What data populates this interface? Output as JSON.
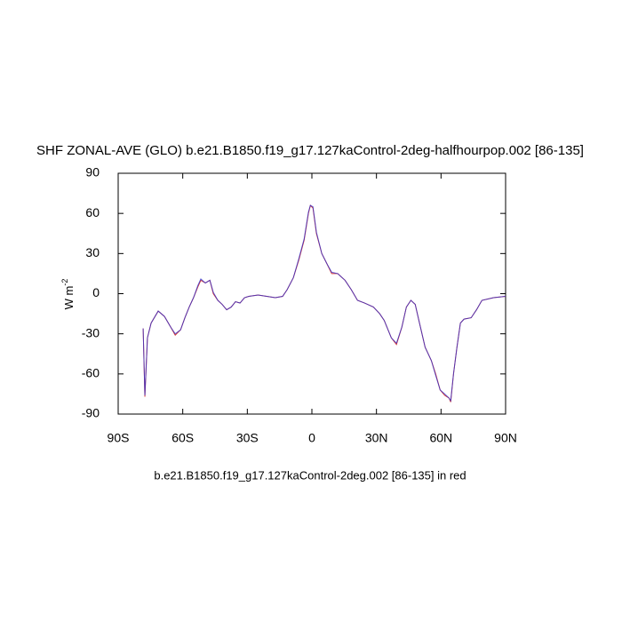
{
  "chart_data": {
    "type": "line",
    "title": "SHF ZONAL-AVE (GLO) b.e21.B1850.f19_g17.127kaControl-2deg-halfhourpop.002 [86-135]",
    "subtitle": "b.e21.B1850.f19_g17.127kaControl-2deg.002 [86-135] in red",
    "ylabel": {
      "text": "W m",
      "sup": "-2"
    },
    "x": [
      -78.4,
      -77.6,
      -76.4,
      -74.7,
      -71.4,
      -68.5,
      -65.6,
      -63.5,
      -61,
      -59,
      -57,
      -55,
      -53,
      -51.6,
      -49.5,
      -47.4,
      -45.8,
      -43.7,
      -41.7,
      -39.6,
      -37.5,
      -35.5,
      -33.4,
      -31.3,
      -29.3,
      -25,
      -21,
      -17,
      -13.6,
      -11.5,
      -8.6,
      -6.1,
      -3.6,
      -1.6,
      -0.7,
      0.5,
      2.1,
      4.6,
      7.1,
      9.2,
      12,
      15.4,
      18.3,
      21.2,
      24.5,
      28.6,
      31.5,
      33.6,
      36.9,
      39.3,
      41.8,
      43.9,
      46,
      48,
      50,
      52.6,
      55.5,
      57.5,
      59.6,
      61.7,
      63.7,
      64.5,
      65.8,
      67.4,
      69,
      70.7,
      74,
      76.5,
      79,
      84.4,
      90
    ],
    "series": [
      {
        "color": "#cc0000",
        "values": [
          -26,
          -77,
          -33,
          -22,
          -13,
          -17,
          -25,
          -31,
          -27,
          -18,
          -10,
          -3,
          5,
          10,
          8,
          10,
          0,
          -5,
          -8,
          -12,
          -10,
          -6,
          -7,
          -3,
          -2,
          -1,
          -2,
          -3,
          -2,
          3,
          12,
          25,
          40,
          60,
          66,
          64,
          45,
          30,
          22,
          15,
          15,
          10,
          3,
          -5,
          -7,
          -10,
          -15,
          -20,
          -33,
          -38,
          -25,
          -10,
          -5,
          -8,
          -22,
          -40,
          -50,
          -60,
          -72,
          -76,
          -78,
          -81,
          -60,
          -40,
          -22,
          -19,
          -18,
          -12,
          -5,
          -3,
          -2
        ]
      },
      {
        "color": "#3333cc",
        "values": [
          -26,
          -76,
          -33,
          -22,
          -13,
          -17,
          -25,
          -30,
          -27,
          -18,
          -10,
          -3,
          6,
          11,
          8,
          10,
          1,
          -5,
          -8,
          -12,
          -10,
          -6,
          -7,
          -3,
          -2,
          -1,
          -2,
          -3,
          -2,
          3,
          12,
          26,
          41,
          61,
          66,
          65,
          46,
          30,
          22,
          16,
          15,
          10,
          3,
          -5,
          -7,
          -10,
          -15,
          -20,
          -33,
          -37,
          -25,
          -10,
          -5,
          -8,
          -22,
          -40,
          -50,
          -61,
          -72,
          -75,
          -78,
          -80,
          -60,
          -40,
          -22,
          -19,
          -18,
          -12,
          -5,
          -3,
          -2
        ]
      }
    ],
    "xlim": [
      -90,
      90
    ],
    "xticks": [
      {
        "value": -90,
        "label": "90S"
      },
      {
        "value": -60,
        "label": "60S"
      },
      {
        "value": -30,
        "label": "30S"
      },
      0,
      {
        "value": 30,
        "label": "30N"
      },
      {
        "value": 60,
        "label": "60N"
      },
      {
        "value": 90,
        "label": "90N"
      }
    ],
    "ylim": [
      -90,
      90
    ],
    "yticks": [
      90,
      60,
      30,
      0,
      -30,
      -60,
      -90
    ]
  }
}
